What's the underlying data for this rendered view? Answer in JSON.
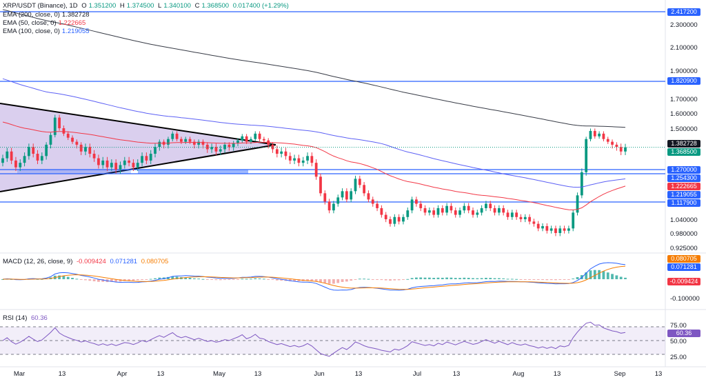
{
  "chart_data": {
    "type": "candlestick",
    "symbol_line": {
      "title": "XRP/USDT (Binance), 1D",
      "ohlc": [
        "O",
        "1.351200",
        "H",
        "1.374500",
        "L",
        "1.340100",
        "C",
        "1.368500",
        "0.017400 (+1.29%)"
      ]
    },
    "indicators": [
      {
        "label": "EMA (200, close, 0)",
        "value": "1.382728",
        "color": "#000000",
        "value_color": "#000000"
      },
      {
        "label": "EMA (50, close, 0)",
        "value": "1.222665",
        "color": "#f23645",
        "value_color": "#f23645"
      },
      {
        "label": "EMA (100, close, 0)",
        "value": "1.219055",
        "color": "#2962ff",
        "value_color": "#2962ff"
      }
    ],
    "price_axis": [
      "2.300000",
      "2.100000",
      "1.900000",
      "1.700000",
      "1.600000",
      "1.500000",
      "1.040000",
      "0.980000",
      "0.925000"
    ],
    "price_axis_values": [
      2.3,
      2.1,
      1.9,
      1.7,
      1.6,
      1.5,
      1.04,
      0.98,
      0.925
    ],
    "horizontal_levels": [
      2.4172,
      1.8209,
      1.27,
      1.2543,
      1.1179
    ],
    "price_tags": [
      {
        "value": 2.4172,
        "label": "2.417200",
        "color": "#2962ff"
      },
      {
        "value": 1.8209,
        "label": "1.820900",
        "color": "#2962ff"
      },
      {
        "value": 1.382728,
        "label": "1.382728",
        "color": "#131722"
      },
      {
        "value": 1.3685,
        "label": "1.368500",
        "color": "#089981"
      },
      {
        "value": 1.27,
        "label": "1.270000",
        "color": "#2962ff"
      },
      {
        "value": 1.2543,
        "label": "1.254300",
        "color": "#2962ff"
      },
      {
        "value": 1.222665,
        "label": "1.222665",
        "color": "#f23645"
      },
      {
        "value": 1.219055,
        "label": "1.219055",
        "color": "#2962ff"
      },
      {
        "value": 1.1179,
        "label": "1.117900",
        "color": "#2962ff"
      }
    ],
    "x_ticks": [
      "Mar",
      "13",
      "Apr",
      "13",
      "May",
      "13",
      "Jun",
      "13",
      "Jul",
      "13",
      "Aug",
      "13",
      "Sep",
      "13"
    ],
    "x_tick_days": [
      0,
      13,
      31,
      43,
      61,
      73,
      92,
      104,
      122,
      134,
      153,
      165,
      184,
      196
    ],
    "candles_approx": [
      [
        1.3,
        1.32
      ],
      [
        1.32,
        1.35
      ],
      [
        1.35,
        1.31
      ],
      [
        1.31,
        1.28
      ],
      [
        1.28,
        1.3
      ],
      [
        1.3,
        1.33
      ],
      [
        1.33,
        1.37
      ],
      [
        1.37,
        1.34
      ],
      [
        1.34,
        1.31
      ],
      [
        1.31,
        1.33
      ],
      [
        1.33,
        1.38
      ],
      [
        1.38,
        1.45
      ],
      [
        1.45,
        1.57
      ],
      [
        1.57,
        1.5
      ],
      [
        1.5,
        1.46
      ],
      [
        1.46,
        1.43
      ],
      [
        1.43,
        1.4
      ],
      [
        1.4,
        1.38
      ],
      [
        1.38,
        1.35
      ],
      [
        1.35,
        1.37
      ],
      [
        1.37,
        1.34
      ],
      [
        1.34,
        1.32
      ],
      [
        1.32,
        1.29
      ],
      [
        1.29,
        1.31
      ],
      [
        1.31,
        1.28
      ],
      [
        1.28,
        1.3
      ],
      [
        1.3,
        1.27
      ],
      [
        1.27,
        1.29
      ],
      [
        1.29,
        1.31
      ],
      [
        1.31,
        1.3
      ],
      [
        1.3,
        1.28
      ],
      [
        1.28,
        1.3
      ],
      [
        1.3,
        1.33
      ],
      [
        1.33,
        1.31
      ],
      [
        1.31,
        1.34
      ],
      [
        1.34,
        1.37
      ],
      [
        1.37,
        1.4
      ],
      [
        1.4,
        1.38
      ],
      [
        1.38,
        1.42
      ],
      [
        1.42,
        1.46
      ],
      [
        1.46,
        1.42
      ],
      [
        1.42,
        1.4
      ],
      [
        1.4,
        1.42
      ],
      [
        1.42,
        1.4
      ],
      [
        1.4,
        1.38
      ],
      [
        1.38,
        1.4
      ],
      [
        1.4,
        1.38
      ],
      [
        1.38,
        1.36
      ],
      [
        1.36,
        1.37
      ],
      [
        1.37,
        1.35
      ],
      [
        1.35,
        1.36
      ],
      [
        1.36,
        1.38
      ],
      [
        1.38,
        1.37
      ],
      [
        1.37,
        1.39
      ],
      [
        1.39,
        1.41
      ],
      [
        1.41,
        1.44
      ],
      [
        1.44,
        1.4
      ],
      [
        1.4,
        1.42
      ],
      [
        1.42,
        1.46
      ],
      [
        1.46,
        1.42
      ],
      [
        1.42,
        1.41
      ],
      [
        1.41,
        1.38
      ],
      [
        1.38,
        1.36
      ],
      [
        1.36,
        1.34
      ],
      [
        1.34,
        1.35
      ],
      [
        1.35,
        1.33
      ],
      [
        1.33,
        1.31
      ],
      [
        1.31,
        1.32
      ],
      [
        1.32,
        1.3
      ],
      [
        1.3,
        1.31
      ],
      [
        1.31,
        1.33
      ],
      [
        1.33,
        1.3
      ],
      [
        1.3,
        1.24
      ],
      [
        1.24,
        1.16
      ],
      [
        1.16,
        1.12
      ],
      [
        1.12,
        1.08
      ],
      [
        1.08,
        1.11
      ],
      [
        1.11,
        1.14
      ],
      [
        1.14,
        1.17
      ],
      [
        1.17,
        1.13
      ],
      [
        1.13,
        1.17
      ],
      [
        1.17,
        1.23
      ],
      [
        1.23,
        1.2
      ],
      [
        1.2,
        1.16
      ],
      [
        1.16,
        1.13
      ],
      [
        1.13,
        1.11
      ],
      [
        1.11,
        1.09
      ],
      [
        1.09,
        1.06
      ],
      [
        1.06,
        1.04
      ],
      [
        1.04,
        1.02
      ],
      [
        1.02,
        1.05
      ],
      [
        1.05,
        1.03
      ],
      [
        1.03,
        1.05
      ],
      [
        1.05,
        1.08
      ],
      [
        1.08,
        1.13
      ],
      [
        1.13,
        1.11
      ],
      [
        1.11,
        1.09
      ],
      [
        1.09,
        1.07
      ],
      [
        1.07,
        1.08
      ],
      [
        1.08,
        1.06
      ],
      [
        1.06,
        1.09
      ],
      [
        1.09,
        1.07
      ],
      [
        1.07,
        1.1
      ],
      [
        1.1,
        1.08
      ],
      [
        1.08,
        1.06
      ],
      [
        1.06,
        1.08
      ],
      [
        1.08,
        1.1
      ],
      [
        1.1,
        1.08
      ],
      [
        1.08,
        1.06
      ],
      [
        1.06,
        1.07
      ],
      [
        1.07,
        1.09
      ],
      [
        1.09,
        1.11
      ],
      [
        1.11,
        1.09
      ],
      [
        1.09,
        1.07
      ],
      [
        1.07,
        1.09
      ],
      [
        1.09,
        1.07
      ],
      [
        1.07,
        1.05
      ],
      [
        1.05,
        1.07
      ],
      [
        1.07,
        1.05
      ],
      [
        1.05,
        1.04
      ],
      [
        1.04,
        1.05
      ],
      [
        1.05,
        1.03
      ],
      [
        1.03,
        1.02
      ],
      [
        1.02,
        1.0
      ],
      [
        1.0,
        1.01
      ],
      [
        1.01,
        0.99
      ],
      [
        0.99,
        1.0
      ],
      [
        1.0,
        0.98
      ],
      [
        0.98,
        1.0
      ],
      [
        1.0,
        0.99
      ],
      [
        0.99,
        1.0
      ],
      [
        1.0,
        1.07
      ],
      [
        1.07,
        1.15
      ],
      [
        1.15,
        1.26
      ],
      [
        1.26,
        1.42
      ],
      [
        1.42,
        1.48
      ],
      [
        1.48,
        1.44
      ],
      [
        1.44,
        1.46
      ],
      [
        1.46,
        1.42
      ],
      [
        1.42,
        1.4
      ],
      [
        1.4,
        1.38
      ],
      [
        1.38,
        1.37
      ],
      [
        1.37,
        1.35
      ],
      [
        1.35,
        1.368
      ]
    ],
    "macd": {
      "label": "MACD (12, 26, close, 9)",
      "values": [
        "-0.009424",
        "0.071281",
        "0.080705"
      ],
      "value_colors": [
        "#f23645",
        "#2962ff",
        "#f57c00"
      ],
      "tags": [
        {
          "label": "0.080705",
          "color": "#f57c00"
        },
        {
          "label": "0.071281",
          "color": "#2962ff"
        },
        {
          "label": "-0.009424",
          "color": "#f23645"
        }
      ],
      "axis": [
        "-0.100000"
      ]
    },
    "rsi": {
      "label": "RSI (14)",
      "value": "60.36",
      "axis": [
        "75.00",
        "50.00",
        "25.00"
      ],
      "tag": "60.36"
    }
  }
}
